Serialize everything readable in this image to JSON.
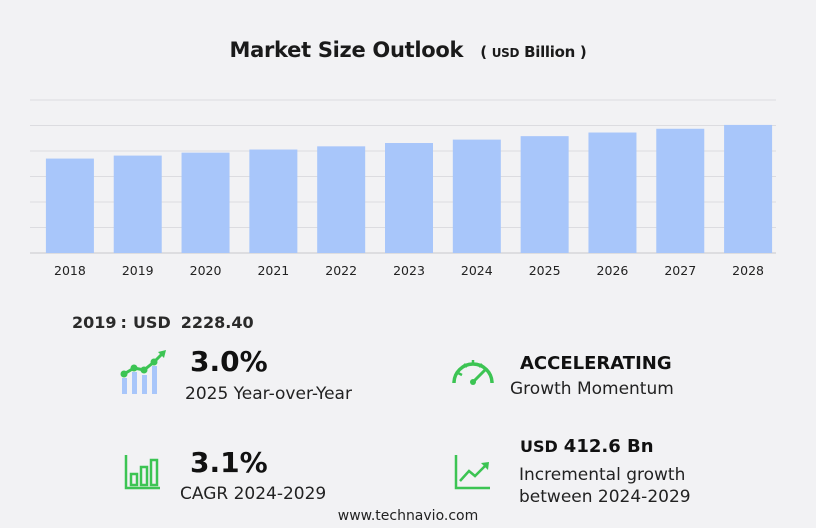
{
  "title": "Market Size Outlook",
  "title_unit_prefix": "(",
  "title_unit_currency": "USD",
  "title_unit_word": "Billion )",
  "chart_data": {
    "type": "bar",
    "categories": [
      "2018",
      "2019",
      "2020",
      "2021",
      "2022",
      "2023",
      "2024",
      "2025",
      "2026",
      "2027",
      "2028"
    ],
    "values": [
      2160.0,
      2228.4,
      2296.0,
      2367.0,
      2440.0,
      2516.0,
      2594.0,
      2673.0,
      2756.0,
      2842.0,
      2930.0
    ],
    "ylim": [
      0,
      3500
    ],
    "bar_color": "#a8c6fa",
    "grid": true
  },
  "highlight": {
    "year": "2019",
    "sep": ":",
    "currency": "USD",
    "value": "2228.40"
  },
  "kpis": {
    "yoy": {
      "value": "3.0%",
      "label": "2025 Year-over-Year",
      "icon": "growth-chart-icon"
    },
    "momentum": {
      "value": "ACCELERATING",
      "label": "Growth Momentum",
      "icon": "speedometer-icon"
    },
    "cagr": {
      "value": "3.1%",
      "label": "CAGR 2024-2029",
      "icon": "bar-chart-icon"
    },
    "incremental": {
      "currency": "USD",
      "value": "412.6 Bn",
      "label_line1": "Incremental growth",
      "label_line2": "between 2024-2029",
      "icon": "trend-up-icon"
    }
  },
  "colors": {
    "icon_green": "#3cc453",
    "bar": "#a8c6fa",
    "icon_blue": "#a8c6fa"
  },
  "footer": "www.technavio.com"
}
